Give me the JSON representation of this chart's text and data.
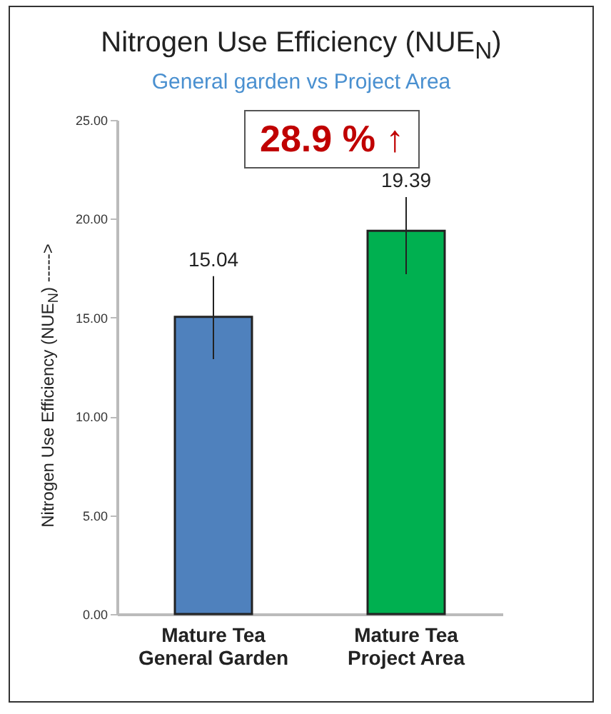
{
  "chart_data": {
    "type": "bar",
    "title": "Nitrogen Use Efficiency (NUE$_{N}$)",
    "subtitle": "General garden vs Project Area",
    "ylabel": "Nitrogen Use Efficiency (NUE$_{N}$) ----->",
    "annotations": [
      "28.9 % ↑"
    ],
    "categories": [
      "Mature Tea General Garden",
      "Mature Tea Project Area"
    ],
    "values": [
      15.04,
      19.39
    ],
    "colors": [
      "#4f81bd",
      "#00b050"
    ],
    "errors": [
      [
        12.9,
        17.1
      ],
      [
        17.2,
        21.1
      ]
    ],
    "data_labels": true,
    "ylim": [
      0,
      25
    ],
    "yticks": [
      {
        "value": 0,
        "label": "0.00"
      },
      {
        "value": 5,
        "label": "5.00"
      },
      {
        "value": 10,
        "label": "10.00"
      },
      {
        "value": 15,
        "label": "15.00"
      },
      {
        "value": 20,
        "label": "20.00"
      },
      {
        "value": 25,
        "label": "25.00"
      }
    ],
    "grid": false
  }
}
